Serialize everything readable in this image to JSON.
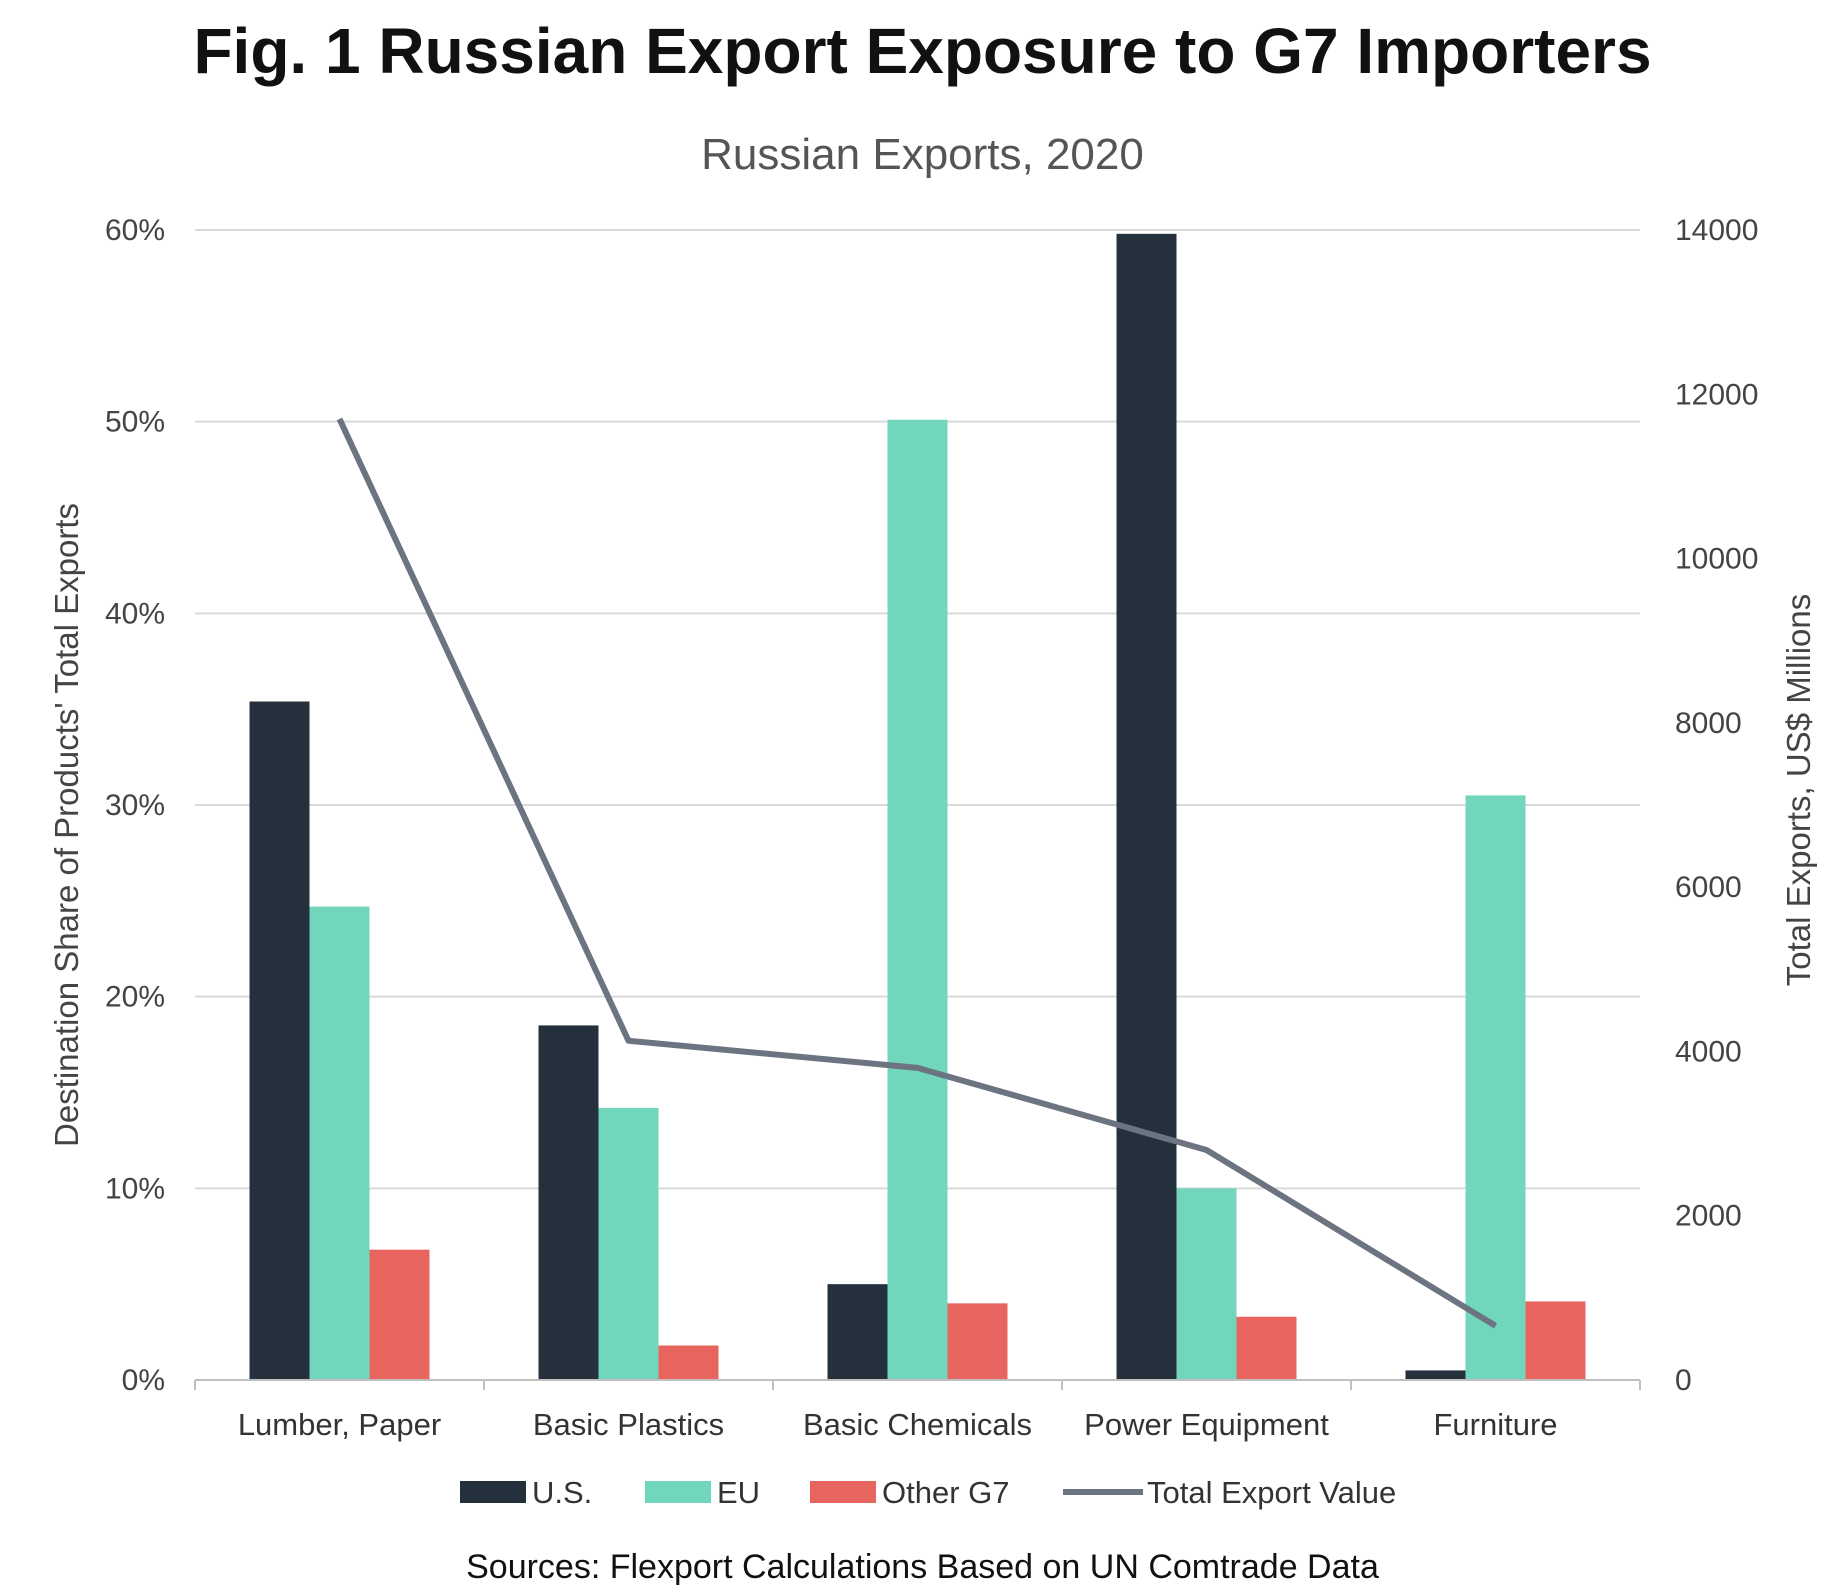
{
  "title": "Fig. 1 Russian Export Exposure to G7 Importers",
  "source": "Sources: Flexport Calculations Based on UN Comtrade Data",
  "chart_data": {
    "type": "bar",
    "title": "Russian Exports, 2020",
    "categories": [
      "Lumber, Paper",
      "Basic Plastics",
      "Basic Chemicals",
      "Power Equipment",
      "Furniture"
    ],
    "series": [
      {
        "name": "U.S.",
        "type": "bar",
        "axis": "left",
        "color": "#25303d",
        "values": [
          0.354,
          0.185,
          0.05,
          0.598,
          0.005
        ]
      },
      {
        "name": "EU",
        "type": "bar",
        "axis": "left",
        "color": "#72d6bd",
        "values": [
          0.247,
          0.142,
          0.501,
          0.1,
          0.305
        ]
      },
      {
        "name": "Other G7",
        "type": "bar",
        "axis": "left",
        "color": "#e8655f",
        "values": [
          0.068,
          0.018,
          0.04,
          0.033,
          0.041
        ]
      },
      {
        "name": "Total Export Value",
        "type": "line",
        "axis": "right",
        "color": "#6b7480",
        "values": [
          11700,
          4130,
          3800,
          2800,
          660
        ]
      }
    ],
    "ylabel": "Destination Share of Products' Total Exports",
    "y2label": "Total Exports, US$ Millions",
    "ylim": [
      0,
      0.6
    ],
    "y2lim": [
      0,
      14000
    ],
    "yticks": [
      "0%",
      "10%",
      "20%",
      "30%",
      "40%",
      "50%",
      "60%"
    ],
    "y2ticks": [
      "0",
      "2000",
      "4000",
      "6000",
      "8000",
      "10000",
      "12000",
      "14000"
    ],
    "grid": true,
    "legend_position": "bottom"
  }
}
